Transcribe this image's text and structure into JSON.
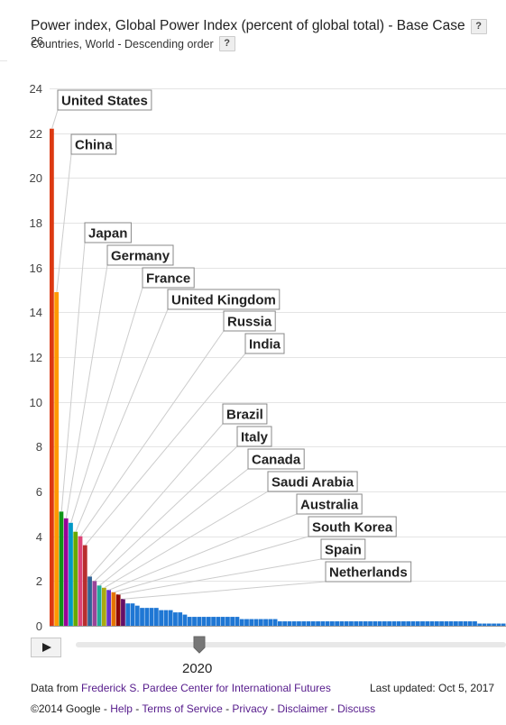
{
  "header": {
    "title": "Power index, Global Power Index (percent of global total) - Base Case",
    "subtitle": "Countries, World - Descending order",
    "help": "?",
    "ymax_overlap": "26"
  },
  "chart_data": {
    "type": "bar",
    "title": "Power index, Global Power Index (percent of global total) - Base Case",
    "subtitle": "Countries, World - Descending order",
    "xlabel": "",
    "ylabel": "",
    "ylim": [
      0,
      24
    ],
    "yticks": [
      "0",
      "2",
      "4",
      "6",
      "8",
      "10",
      "12",
      "14",
      "16",
      "18",
      "20",
      "22",
      "24"
    ],
    "grid": true,
    "labeled_categories": [
      "United States",
      "China",
      "Japan",
      "Germany",
      "France",
      "United Kingdom",
      "Russia",
      "India",
      "Brazil",
      "Italy",
      "Canada",
      "Saudi Arabia",
      "Australia",
      "South Korea",
      "Spain",
      "Netherlands"
    ],
    "values": [
      22.2,
      14.9,
      5.1,
      4.8,
      4.6,
      4.2,
      4.0,
      3.6,
      2.2,
      2.0,
      1.8,
      1.7,
      1.6,
      1.5,
      1.4,
      1.2,
      1.0,
      1.0,
      0.9,
      0.8,
      0.8,
      0.8,
      0.8,
      0.7,
      0.7,
      0.7,
      0.6,
      0.6,
      0.5,
      0.4,
      0.4,
      0.4,
      0.4,
      0.4,
      0.4,
      0.4,
      0.4,
      0.4,
      0.4,
      0.4,
      0.3,
      0.3,
      0.3,
      0.3,
      0.3,
      0.3,
      0.3,
      0.3,
      0.2,
      0.2,
      0.2,
      0.2,
      0.2,
      0.2,
      0.2,
      0.2,
      0.2,
      0.2,
      0.2,
      0.2,
      0.2,
      0.2,
      0.2,
      0.2,
      0.2,
      0.2,
      0.2,
      0.2,
      0.2,
      0.2,
      0.2,
      0.2,
      0.2,
      0.2,
      0.2,
      0.2,
      0.2,
      0.2,
      0.2,
      0.2,
      0.2,
      0.2,
      0.2,
      0.2,
      0.2,
      0.2,
      0.2,
      0.2,
      0.2,
      0.2,
      0.1,
      0.1,
      0.1,
      0.1,
      0.1,
      0.1
    ],
    "colors": [
      "#dc3912",
      "#ff9900",
      "#109618",
      "#990099",
      "#0099c6",
      "#66aa00",
      "#dd4477",
      "#b82e2e",
      "#316395",
      "#994499",
      "#22aa99",
      "#aaaa11",
      "#6633cc",
      "#e67300",
      "#8b0707",
      "#651067"
    ],
    "default_color": "#1f77d4"
  },
  "playback": {
    "year": "2020"
  },
  "footer": {
    "data_from_prefix": "Data from",
    "source_link": "Frederick S. Pardee Center for International Futures",
    "last_updated": "Last updated: Oct 5, 2017",
    "copyright": "©2014 Google -",
    "links": [
      "Help",
      "Terms of Service",
      "Privacy",
      "Disclaimer",
      "Discuss"
    ],
    "sep": " - "
  }
}
